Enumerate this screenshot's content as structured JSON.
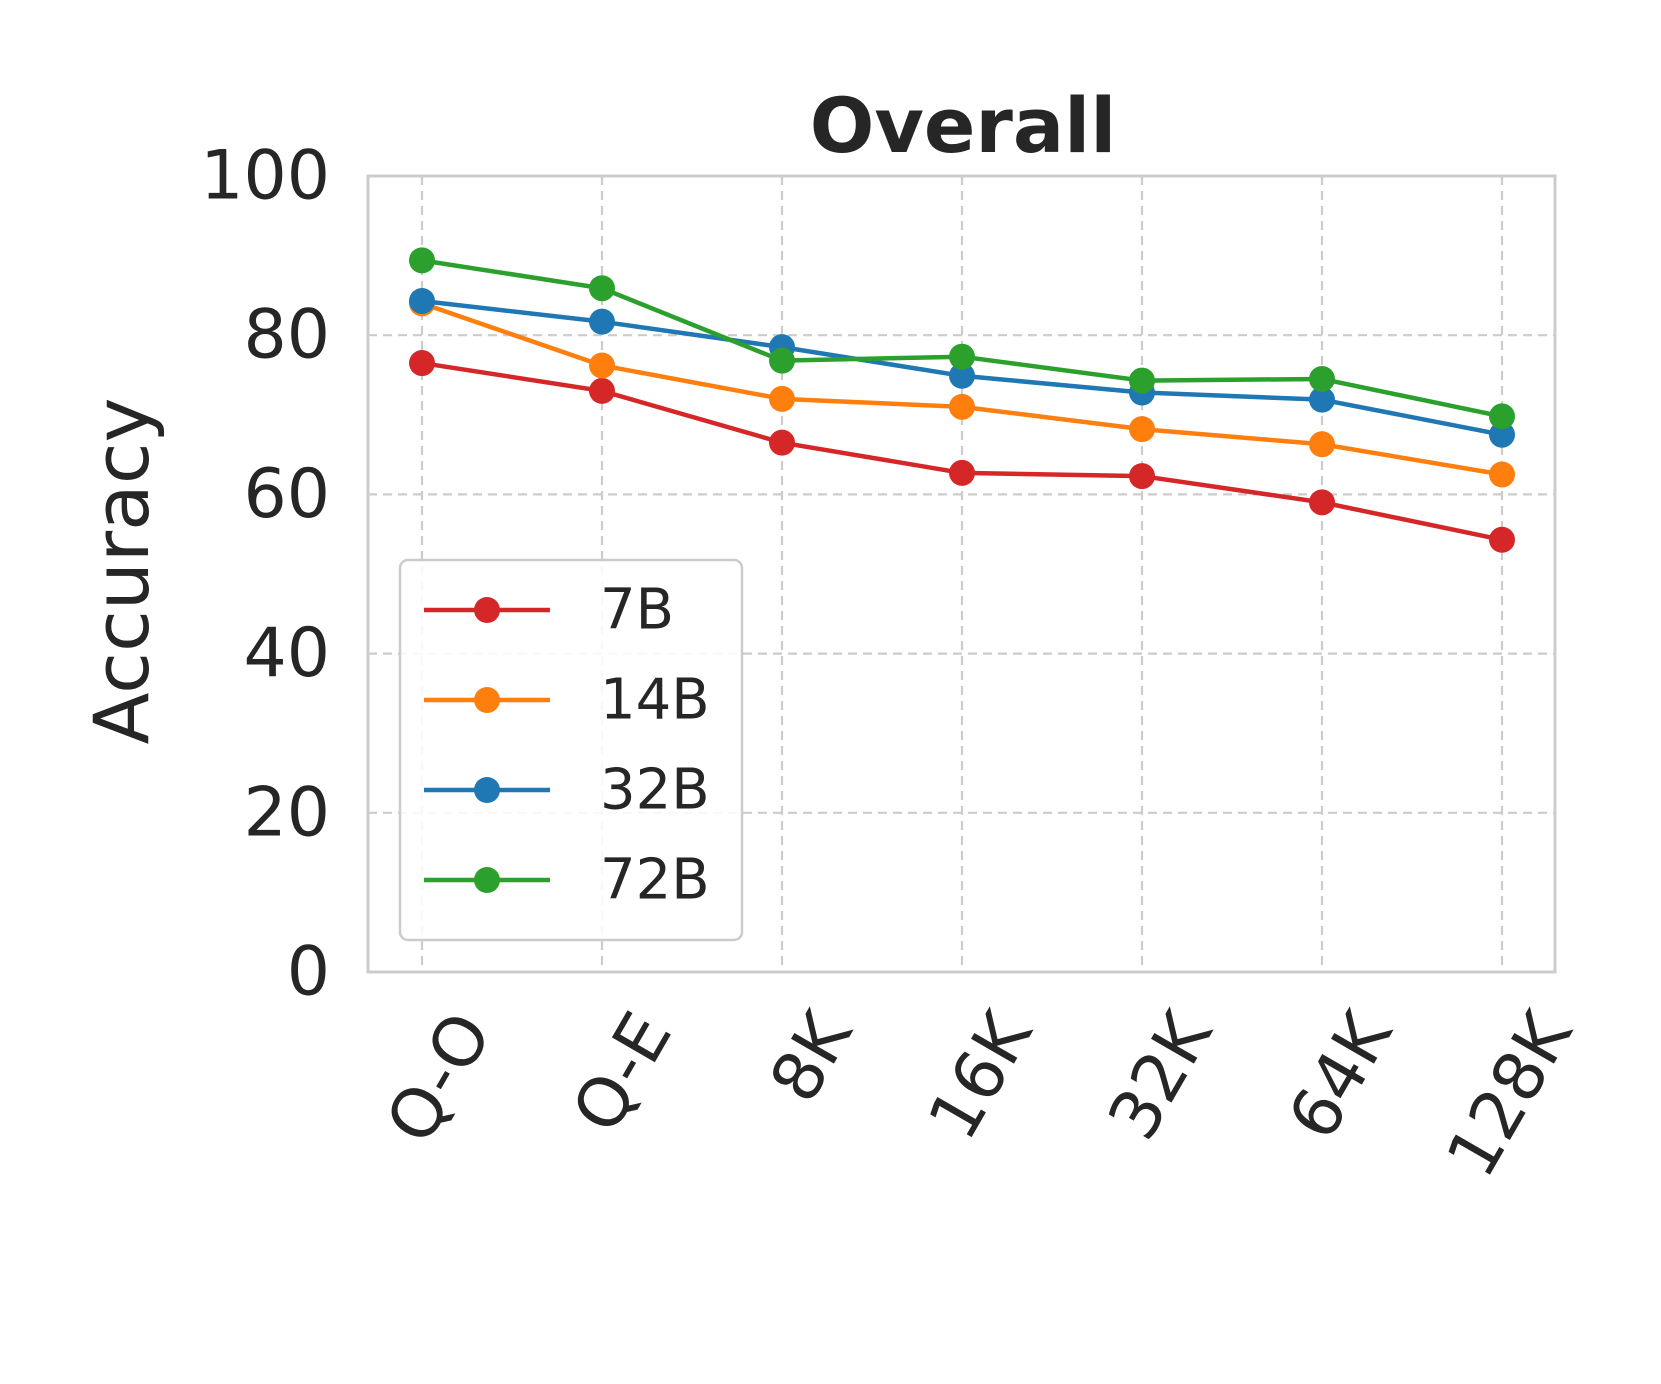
{
  "chart_data": {
    "type": "line",
    "title": "Overall",
    "xlabel": "",
    "ylabel": "Accuracy",
    "categories": [
      "Q-O",
      "Q-E",
      "8K",
      "16K",
      "32K",
      "64K",
      "128K"
    ],
    "ylim": [
      0,
      100
    ],
    "yticks": [
      0,
      20,
      40,
      60,
      80,
      100
    ],
    "grid": true,
    "legend_position": "lower-left",
    "series": [
      {
        "name": "7B",
        "color": "#d62728",
        "values": [
          76.5,
          73.0,
          66.5,
          62.7,
          62.3,
          59.0,
          54.3
        ]
      },
      {
        "name": "14B",
        "color": "#ff7f0e",
        "values": [
          84.0,
          76.2,
          72.0,
          71.0,
          68.2,
          66.3,
          62.5
        ]
      },
      {
        "name": "32B",
        "color": "#1f77b4",
        "values": [
          84.3,
          81.7,
          78.5,
          74.9,
          72.8,
          71.9,
          67.5
        ]
      },
      {
        "name": "72B",
        "color": "#2ca02c",
        "values": [
          89.4,
          85.9,
          76.8,
          77.3,
          74.3,
          74.5,
          69.8
        ]
      }
    ]
  }
}
